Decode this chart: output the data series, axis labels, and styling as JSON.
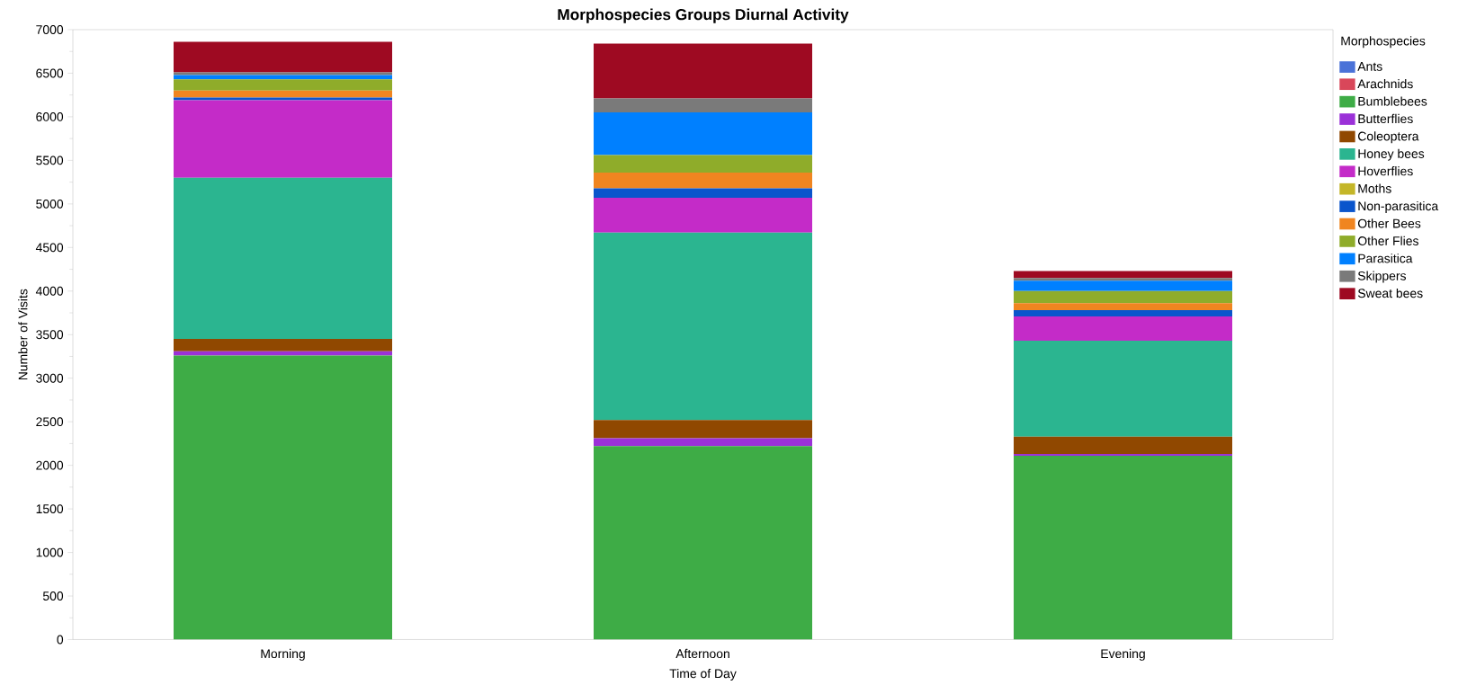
{
  "chart_data": {
    "type": "bar",
    "stacked": true,
    "title": "Morphospecies Groups Diurnal Activity",
    "xlabel": "Time of Day",
    "ylabel": "Number of Visits",
    "legend_title": "Morphospecies",
    "legend": "right",
    "grid": false,
    "categories": [
      "Morning",
      "Afternoon",
      "Evening"
    ],
    "ylim": [
      0,
      7000
    ],
    "yticks": [
      0,
      500,
      1000,
      1500,
      2000,
      2500,
      3000,
      3500,
      4000,
      4500,
      5000,
      5500,
      6000,
      6500,
      7000
    ],
    "series": [
      {
        "name": "Ants",
        "color": "#4a72d8",
        "values": [
          0,
          0,
          0
        ]
      },
      {
        "name": "Arachnids",
        "color": "#d9475a",
        "values": [
          0,
          0,
          0
        ]
      },
      {
        "name": "Bumblebees",
        "color": "#3eac46",
        "values": [
          3260,
          2220,
          2110
        ]
      },
      {
        "name": "Butterflies",
        "color": "#9b31d8",
        "values": [
          50,
          90,
          20
        ]
      },
      {
        "name": "Coleoptera",
        "color": "#904800",
        "values": [
          140,
          210,
          200
        ]
      },
      {
        "name": "Honey bees",
        "color": "#2bb590",
        "values": [
          1850,
          2150,
          1100
        ]
      },
      {
        "name": "Hoverflies",
        "color": "#c42bc8",
        "values": [
          890,
          400,
          280
        ]
      },
      {
        "name": "Moths",
        "color": "#c4b628",
        "values": [
          0,
          0,
          0
        ]
      },
      {
        "name": "Non-parasitica",
        "color": "#0a55cc",
        "values": [
          30,
          110,
          70
        ]
      },
      {
        "name": "Other Bees",
        "color": "#f08520",
        "values": [
          80,
          180,
          80
        ]
      },
      {
        "name": "Other Flies",
        "color": "#8fac2a",
        "values": [
          130,
          200,
          140
        ]
      },
      {
        "name": "Parasitica",
        "color": "#0080ff",
        "values": [
          50,
          490,
          120
        ]
      },
      {
        "name": "Skippers",
        "color": "#7a7a7a",
        "values": [
          30,
          160,
          30
        ]
      },
      {
        "name": "Sweat bees",
        "color": "#9e0a22",
        "values": [
          350,
          630,
          80
        ]
      }
    ]
  }
}
